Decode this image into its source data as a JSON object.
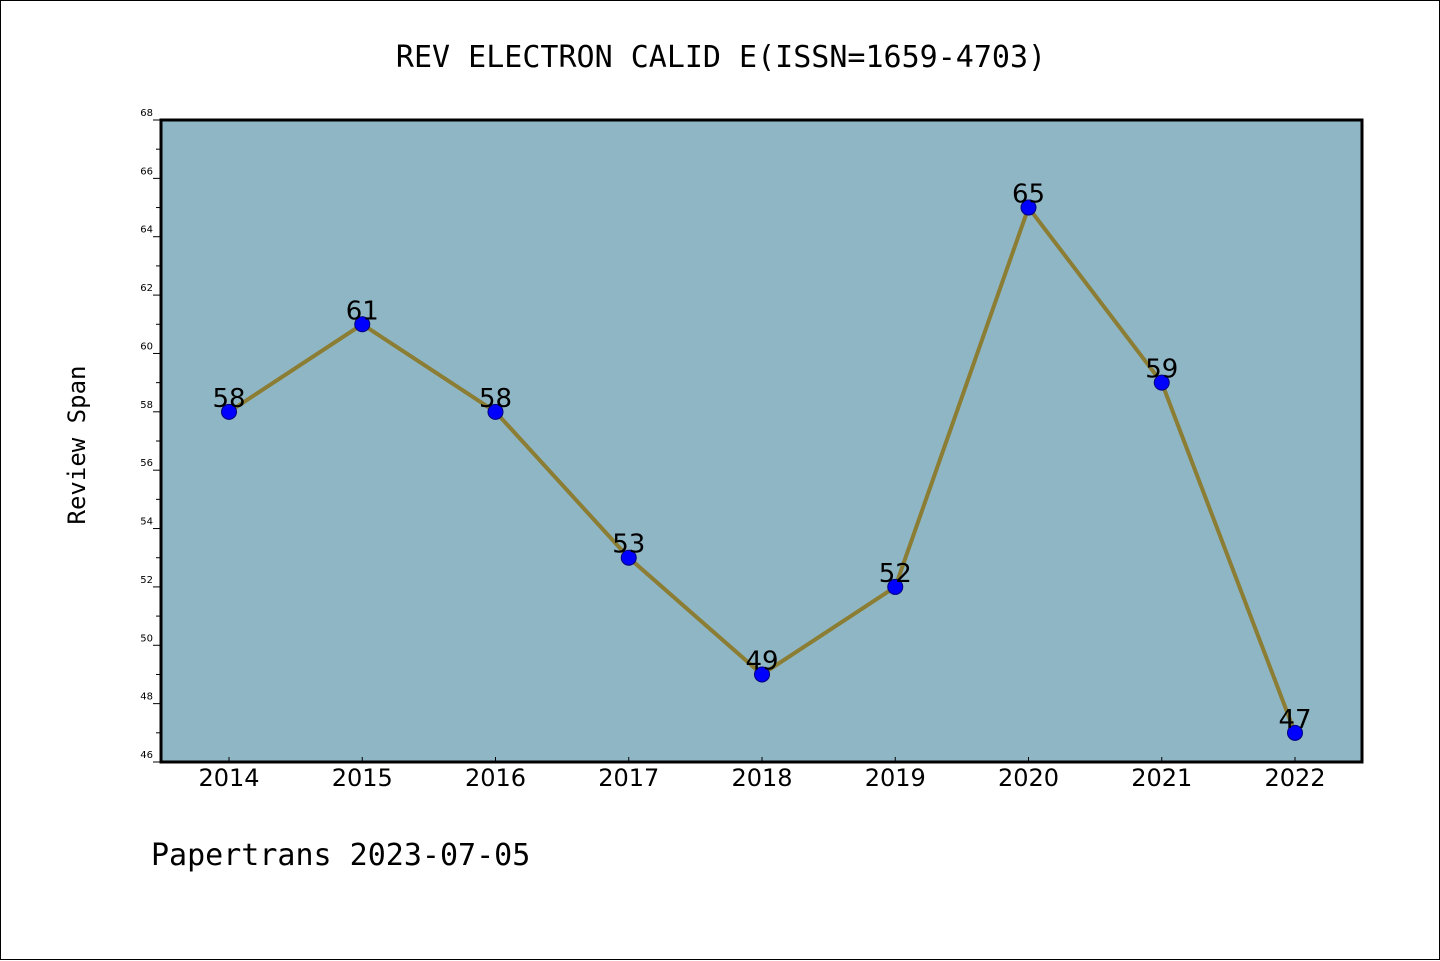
{
  "chart_data": {
    "type": "line",
    "title": "REV ELECTRON CALID E(ISSN=1659-4703)",
    "ylabel": "Review Span",
    "xlabel": "",
    "categories": [
      "2014",
      "2015",
      "2016",
      "2017",
      "2018",
      "2019",
      "2020",
      "2021",
      "2022"
    ],
    "series": [
      {
        "values": [
          58,
          61,
          58,
          53,
          49,
          52,
          65,
          59,
          47
        ]
      }
    ],
    "ylim": [
      46,
      68
    ],
    "yticks": [
      "46",
      "48",
      "50",
      "52",
      "54",
      "56",
      "58",
      "60",
      "62",
      "64",
      "66",
      "68"
    ],
    "grid": false,
    "colors": {
      "plot_background": "#8fb6c4",
      "line": "#8b7d33",
      "marker": "#0000ff"
    }
  },
  "footer": "Papertrans 2023-07-05"
}
